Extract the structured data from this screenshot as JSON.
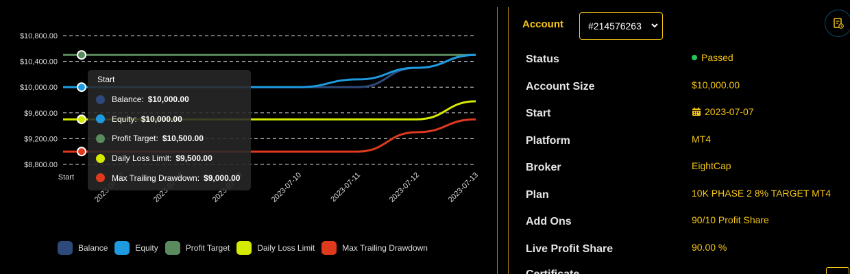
{
  "chart_data": {
    "type": "line",
    "x_labels": [
      "Start",
      "2023-07-07",
      "2023-07-08",
      "2023-07-09",
      "2023-07-10",
      "2023-07-11",
      "2023-07-12",
      "2023-07-13"
    ],
    "y_ticks": [
      "$10,800.00",
      "$10,400.00",
      "$10,000.00",
      "$9,600.00",
      "$9,200.00",
      "$8,800.00"
    ],
    "ylim": [
      8800,
      10800
    ],
    "grid": "horizontal dashed",
    "series": [
      {
        "name": "Balance",
        "color": "#2e4a7a",
        "values": [
          10000,
          10000,
          10000,
          10000,
          10000,
          10000,
          10300,
          10500
        ]
      },
      {
        "name": "Equity",
        "color": "#1e9be0",
        "values": [
          10000,
          10000,
          10000,
          10000,
          10000,
          10120,
          10300,
          10500
        ]
      },
      {
        "name": "Profit Target",
        "color": "#5a8a5e",
        "values": [
          10500,
          10500,
          10500,
          10500,
          10500,
          10500,
          10500,
          10500
        ]
      },
      {
        "name": "Daily Loss Limit",
        "color": "#d4ea00",
        "values": [
          9500,
          9500,
          9500,
          9500,
          9500,
          9500,
          9500,
          9780
        ]
      },
      {
        "name": "Max Trailing Drawdown",
        "color": "#e03a1e",
        "values": [
          9000,
          9000,
          9000,
          9000,
          9000,
          9000,
          9300,
          9500
        ]
      }
    ]
  },
  "tooltip": {
    "title": "Start",
    "rows": [
      {
        "label": "Balance:",
        "value": "$10,000.00",
        "color": "#2e4a7a"
      },
      {
        "label": "Equity:",
        "value": "$10,000.00",
        "color": "#1e9be0"
      },
      {
        "label": "Profit Target:",
        "value": "$10,500.00",
        "color": "#5a8a5e"
      },
      {
        "label": "Daily Loss Limit:",
        "value": "$9,500.00",
        "color": "#d4ea00"
      },
      {
        "label": "Max Trailing Drawdown:",
        "value": "$9,000.00",
        "color": "#e03a1e"
      }
    ]
  },
  "account": {
    "label": "Account",
    "selected": "#214576263",
    "rows": [
      {
        "key": "Status",
        "value": "Passed",
        "status_color": "#22c55e"
      },
      {
        "key": "Account Size",
        "value": "$10,000.00"
      },
      {
        "key": "Start",
        "value": "2023-07-07",
        "icon": "calendar-icon"
      },
      {
        "key": "Platform",
        "value": "MT4"
      },
      {
        "key": "Broker",
        "value": "EightCap"
      },
      {
        "key": "Plan",
        "value": "10K PHASE 2 8% TARGET MT4"
      },
      {
        "key": "Add Ons",
        "value": "90/10 Profit Share"
      },
      {
        "key": "Live Profit Share",
        "value": "90.00 %"
      }
    ],
    "partial_key": "Certificate"
  },
  "colors": {
    "accent": "#f5c518",
    "divider": "#b8860b",
    "background": "#000000"
  }
}
